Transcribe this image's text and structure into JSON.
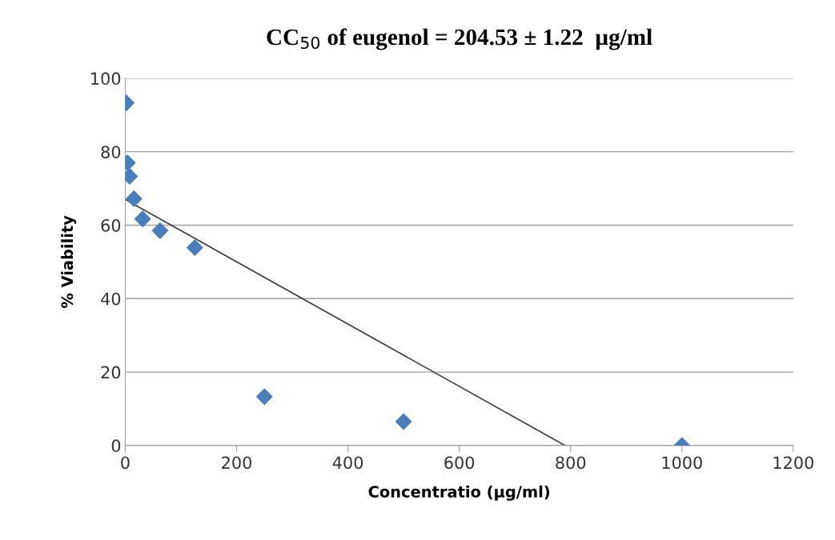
{
  "chart_data": {
    "type": "scatter",
    "title": "CC$_{50}$ of eugenol = 204.53 ± 1.22  µg/ml",
    "xlabel": "Concentratio (µg/ml)",
    "ylabel": "% Viability",
    "series": [
      {
        "color": "#4a7ebb",
        "marker": "diamond",
        "x": [
          1.95,
          3.9,
          7.8,
          15.6,
          31.25,
          62.5,
          125,
          250,
          500,
          1000
        ],
        "values": [
          93.3,
          77,
          73.3,
          67.2,
          61.7,
          58.5,
          53.9,
          13.3,
          6.5,
          0
        ]
      },
      {
        "type": "line",
        "color": "#404040",
        "marker": "none",
        "line_style": "solid",
        "x": [
          0,
          790
        ],
        "values": [
          67,
          0
        ]
      }
    ],
    "xlim": [
      0,
      1200
    ],
    "xticks": [
      0,
      200,
      400,
      600,
      800,
      1000,
      1200
    ],
    "ylim": [
      0,
      100
    ],
    "yticks": [
      0,
      20,
      40,
      60,
      80,
      100
    ],
    "grid": "y",
    "legend": false
  }
}
